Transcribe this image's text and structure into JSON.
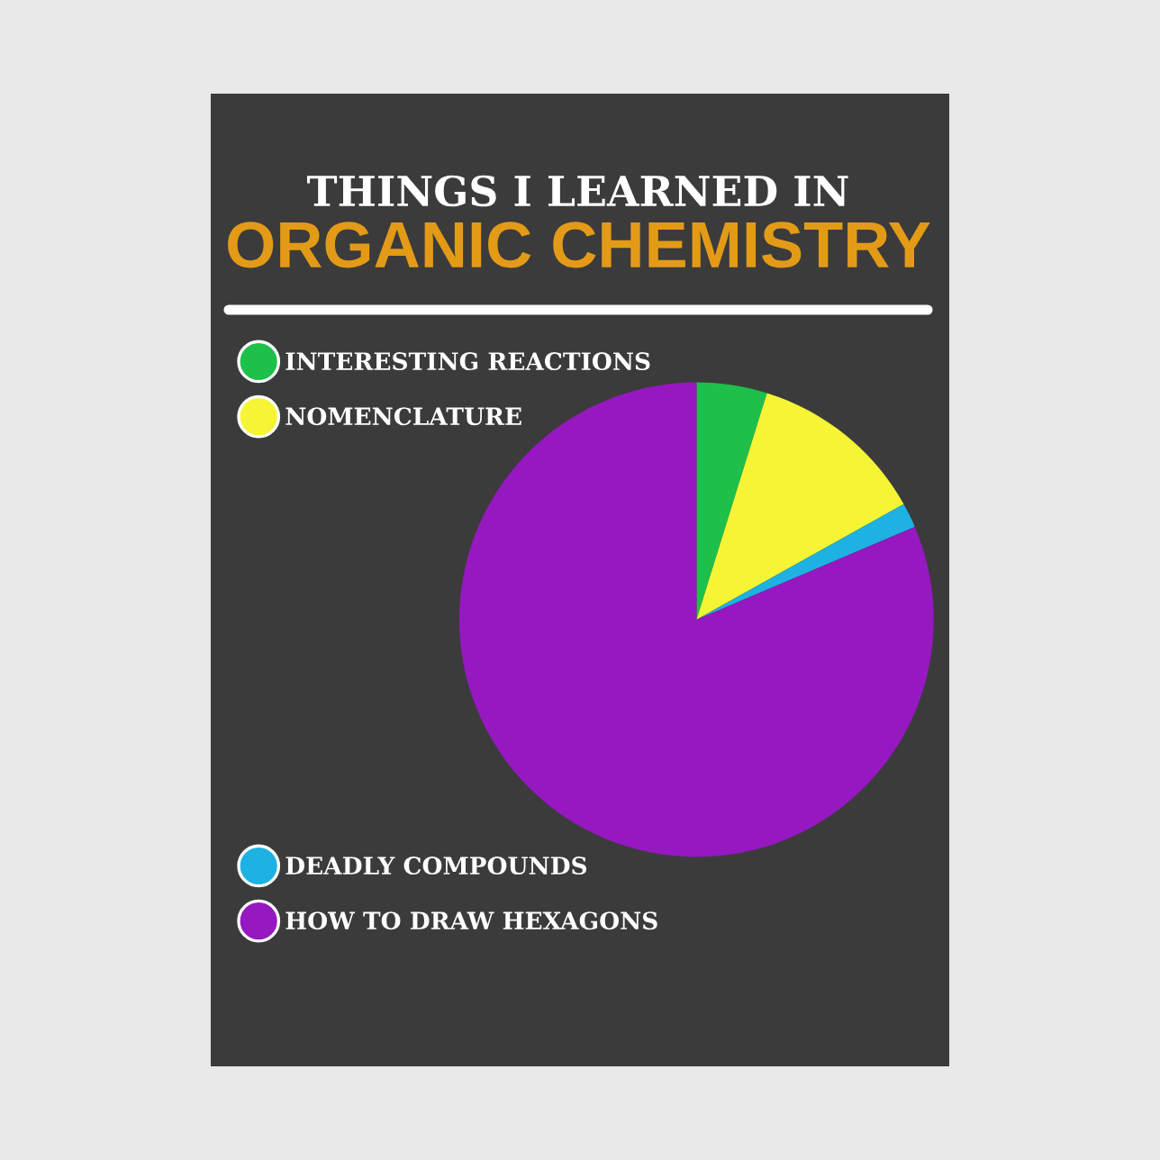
{
  "chart_data": {
    "type": "pie",
    "title": "THINGS I LEARNED IN",
    "subtitle": "ORGANIC CHEMISTRY",
    "categories": [
      "INTERESTING REACTIONS",
      "NOMENCLATURE",
      "DEADLY COMPOUNDS",
      "HOW TO DRAW HEXAGONS"
    ],
    "values": [
      4.8,
      12.1,
      1.7,
      81.4
    ],
    "colors": [
      "#1fbf4b",
      "#f5f535",
      "#1eb2e2",
      "#9618c0"
    ],
    "legend": "left"
  }
}
